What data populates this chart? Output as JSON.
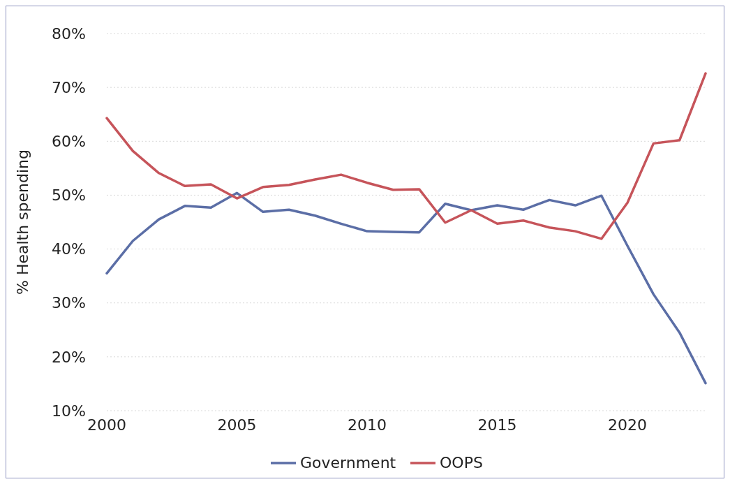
{
  "chart_data": {
    "type": "line",
    "ylabel": "% Health spending",
    "x": [
      2000,
      2001,
      2002,
      2003,
      2004,
      2005,
      2006,
      2007,
      2008,
      2009,
      2010,
      2011,
      2012,
      2013,
      2014,
      2015,
      2016,
      2017,
      2018,
      2019,
      2020,
      2021,
      2022,
      2023
    ],
    "series": [
      {
        "name": "Government",
        "color": "#5b6ea6",
        "values": [
          35.5,
          41.5,
          45.5,
          48.0,
          47.7,
          50.4,
          46.9,
          47.3,
          46.2,
          44.7,
          43.3,
          43.2,
          43.1,
          48.4,
          47.2,
          48.1,
          47.3,
          49.1,
          48.1,
          49.9,
          40.6,
          31.6,
          24.5,
          15.1
        ]
      },
      {
        "name": "OOPS",
        "color": "#c6545a",
        "values": [
          64.3,
          58.2,
          54.1,
          51.7,
          52.0,
          49.4,
          51.5,
          51.9,
          52.9,
          53.8,
          52.3,
          51.0,
          51.1,
          44.9,
          47.2,
          44.7,
          45.3,
          44.0,
          43.3,
          41.9,
          48.6,
          59.6,
          60.2,
          72.6
        ]
      }
    ],
    "xlim": [
      2000,
      2023
    ],
    "xticks": [
      2000,
      2005,
      2010,
      2015,
      2020
    ],
    "ylim": [
      10,
      80
    ],
    "yticks": [
      {
        "value": 10,
        "label": "10%"
      },
      {
        "value": 20,
        "label": "20%"
      },
      {
        "value": 30,
        "label": "30%"
      },
      {
        "value": 40,
        "label": "40%"
      },
      {
        "value": 50,
        "label": "50%"
      },
      {
        "value": 60,
        "label": "60%"
      },
      {
        "value": 70,
        "label": "70%"
      },
      {
        "value": 80,
        "label": "80%"
      }
    ],
    "grid": "y",
    "legend": "bottom",
    "marker": "none",
    "line_style": "solid"
  }
}
